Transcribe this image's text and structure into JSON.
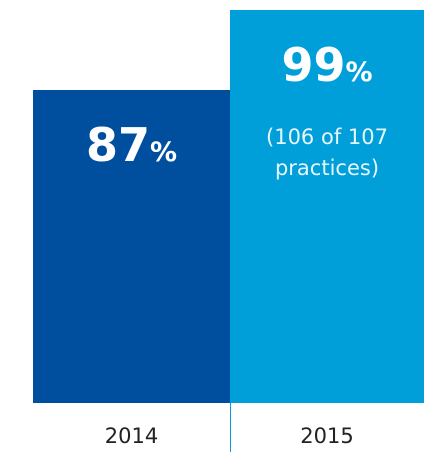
{
  "chart_data": {
    "type": "bar",
    "categories": [
      "2014",
      "2015"
    ],
    "values": [
      87,
      99
    ],
    "value_labels": [
      "87%",
      "99%"
    ],
    "colors": [
      "#004f9f",
      "#009fda"
    ],
    "annotation": "(106 of 107 practices)",
    "ylim": [
      40,
      100
    ]
  }
}
